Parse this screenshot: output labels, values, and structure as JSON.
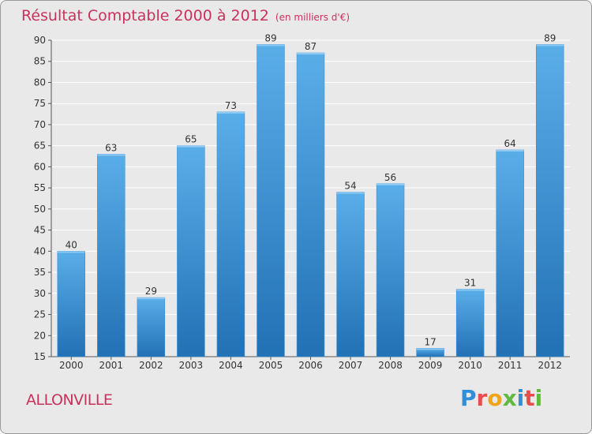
{
  "header": {
    "title": "Résultat Comptable 2000 à 2012",
    "subtitle": "(en milliers d'€)"
  },
  "footer": {
    "commune": "ALLONVILLE",
    "brand": "Proxiti"
  },
  "colors": {
    "title": "#c8335d",
    "bar_top": "#5aaee8",
    "bar_bottom": "#2171b5",
    "background": "#e9e9e9",
    "grid": "#ffffff"
  },
  "chart_data": {
    "type": "bar",
    "title": "Résultat Comptable 2000 à 2012",
    "subtitle": "(en milliers d'€)",
    "xlabel": "",
    "ylabel": "",
    "categories": [
      "2000",
      "2001",
      "2002",
      "2003",
      "2004",
      "2005",
      "2006",
      "2007",
      "2008",
      "2009",
      "2010",
      "2011",
      "2012"
    ],
    "values": [
      40,
      63,
      29,
      65,
      73,
      89,
      87,
      54,
      56,
      17,
      31,
      64,
      89
    ],
    "ylim": [
      15,
      90
    ],
    "yticks": [
      15,
      20,
      25,
      30,
      35,
      40,
      45,
      50,
      55,
      60,
      65,
      70,
      75,
      80,
      85,
      90
    ],
    "grid": true,
    "data_labels": true
  }
}
